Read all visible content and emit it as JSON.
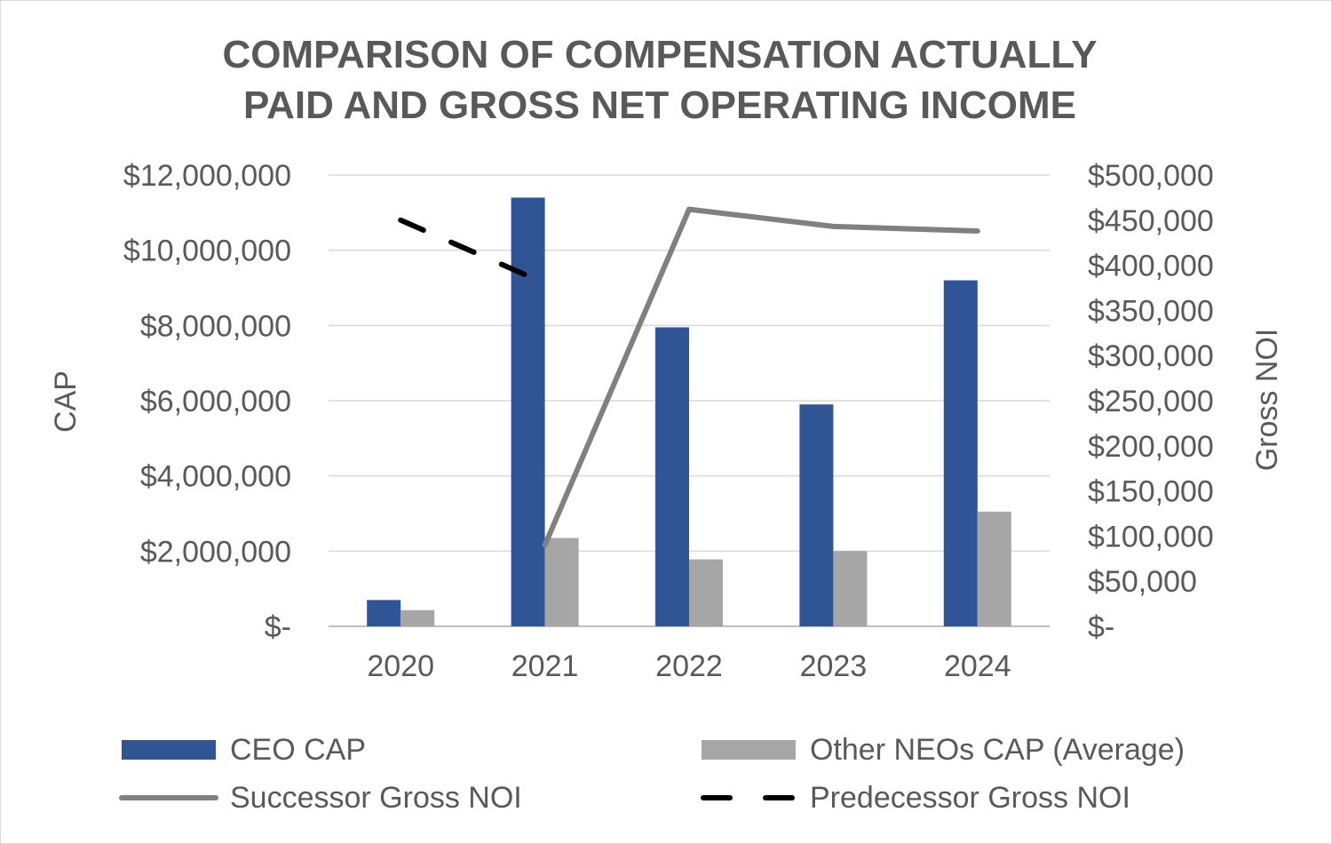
{
  "chart_data": {
    "type": "bar",
    "title_lines": [
      "COMPARISON OF COMPENSATION ACTUALLY",
      "PAID AND GROSS NET OPERATING INCOME"
    ],
    "categories": [
      "2020",
      "2021",
      "2022",
      "2023",
      "2024"
    ],
    "y_left": {
      "label": "CAP",
      "lim": [
        0,
        12000000
      ],
      "ticks": [
        {
          "value": 0,
          "label": "$-"
        },
        {
          "value": 2000000,
          "label": "$2,000,000"
        },
        {
          "value": 4000000,
          "label": "$4,000,000"
        },
        {
          "value": 6000000,
          "label": "$6,000,000"
        },
        {
          "value": 8000000,
          "label": "$8,000,000"
        },
        {
          "value": 10000000,
          "label": "$10,000,000"
        },
        {
          "value": 12000000,
          "label": "$12,000,000"
        }
      ]
    },
    "y_right": {
      "label": "Gross NOI",
      "lim": [
        0,
        500000
      ],
      "ticks": [
        {
          "value": 0,
          "label": "$-"
        },
        {
          "value": 50000,
          "label": "$50,000"
        },
        {
          "value": 100000,
          "label": "$100,000"
        },
        {
          "value": 150000,
          "label": "$150,000"
        },
        {
          "value": 200000,
          "label": "$200,000"
        },
        {
          "value": 250000,
          "label": "$250,000"
        },
        {
          "value": 300000,
          "label": "$300,000"
        },
        {
          "value": 350000,
          "label": "$350,000"
        },
        {
          "value": 400000,
          "label": "$400,000"
        },
        {
          "value": 450000,
          "label": "$450,000"
        },
        {
          "value": 500000,
          "label": "$500,000"
        }
      ]
    },
    "grid": true,
    "series": [
      {
        "name": "CEO CAP",
        "kind": "bar",
        "axis": "left",
        "color": "#2f5597",
        "values": [
          700000,
          11400000,
          7950000,
          5900000,
          9200000
        ]
      },
      {
        "name": "Other NEOs CAP (Average)",
        "kind": "bar",
        "axis": "left",
        "color": "#a6a6a6",
        "values": [
          430000,
          2350000,
          1780000,
          2000000,
          3050000
        ]
      },
      {
        "name": "Successor Gross NOI",
        "kind": "line",
        "axis": "right",
        "color": "#808080",
        "dash": "solid",
        "values": [
          null,
          90000,
          462000,
          443000,
          438000
        ]
      },
      {
        "name": "Predecessor Gross NOI",
        "kind": "line",
        "axis": "right",
        "color": "#000000",
        "dash": "dashed",
        "values": [
          450000,
          380000,
          null,
          null,
          null
        ]
      }
    ],
    "legend": {
      "position": "bottom",
      "items": [
        {
          "label": "CEO CAP",
          "kind": "bar",
          "color": "#2f5597"
        },
        {
          "label": "Other NEOs CAP (Average)",
          "kind": "bar",
          "color": "#a6a6a6"
        },
        {
          "label": "Successor Gross NOI",
          "kind": "line",
          "color": "#808080",
          "dash": "solid"
        },
        {
          "label": "Predecessor Gross NOI",
          "kind": "line",
          "color": "#000000",
          "dash": "dashed"
        }
      ]
    }
  }
}
